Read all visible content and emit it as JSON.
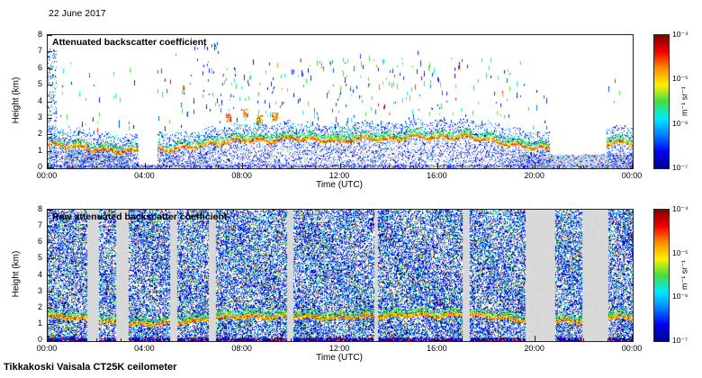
{
  "page": {
    "date_label": "22 June 2017",
    "footer_label": "Tikkakoski Vaisala CT25K ceilometer"
  },
  "chart_data": [
    {
      "type": "heatmap",
      "title": "Attenuated backscatter coefficient",
      "xlabel": "Time (UTC)",
      "ylabel": "Height (km)",
      "x_tick_labels": [
        "00:00",
        "04:00",
        "08:00",
        "12:00",
        "16:00",
        "20:00",
        "00:00"
      ],
      "x_range_hours": [
        0,
        24
      ],
      "y_tick_labels": [
        "0",
        "1",
        "2",
        "3",
        "4",
        "5",
        "6",
        "7",
        "8"
      ],
      "ylim_km": [
        0,
        8
      ],
      "grid": false,
      "colorbar": {
        "unit_label": "m⁻¹ sr⁻¹",
        "scale": "log",
        "tick_labels": [
          "10⁻⁴",
          "10⁻⁵",
          "10⁻⁶",
          "10⁻⁷"
        ],
        "range": [
          1e-07,
          0.0001
        ],
        "gradient_colors": [
          "#7f0000",
          "#ee0000",
          "#ff8c00",
          "#ffee00",
          "#44dd44",
          "#00eaff",
          "#0080ff",
          "#0000ee",
          "#000090"
        ]
      },
      "render": {
        "kind": "sparse",
        "nodata_grey": "#d8d8d8",
        "ground_grey": "#c6c6c6",
        "cloud_base_km": [
          1.4,
          1.3,
          1.1,
          1.0,
          1.0,
          1.1,
          1.3,
          1.5,
          1.7,
          1.6,
          1.8,
          1.7,
          1.6,
          1.8,
          1.7,
          1.9,
          1.8,
          1.9,
          1.7,
          1.4,
          1.2,
          1.2,
          1.3,
          1.5,
          1.5
        ],
        "gaps_hours": [
          [
            3.7,
            4.5
          ],
          [
            20.6,
            22.9
          ]
        ],
        "grey_chunks": [
          [
            0.7,
            3.3,
            1.1
          ],
          [
            6.2,
            6.5,
            0.9
          ],
          [
            19.3,
            24,
            0.8
          ]
        ],
        "high_speck_density": 0.45,
        "blobs": [
          {
            "t": 7.4,
            "km": 3.0
          },
          {
            "t": 8.1,
            "km": 3.3
          },
          {
            "t": 8.7,
            "km": 2.9
          },
          {
            "t": 9.3,
            "km": 3.1
          }
        ]
      }
    },
    {
      "type": "heatmap",
      "title": "Raw attenuated backscatter coefficient",
      "xlabel": "Time (UTC)",
      "ylabel": "Height (km)",
      "x_tick_labels": [
        "00:00",
        "04:00",
        "08:00",
        "12:00",
        "16:00",
        "20:00",
        "00:00"
      ],
      "x_range_hours": [
        0,
        24
      ],
      "y_tick_labels": [
        "0",
        "1",
        "2",
        "3",
        "4",
        "5",
        "6",
        "7",
        "8"
      ],
      "ylim_km": [
        0,
        8
      ],
      "grid": false,
      "colorbar": {
        "unit_label": "m⁻¹ sr⁻¹",
        "scale": "log",
        "tick_labels": [
          "10⁻⁴",
          "10⁻⁵",
          "10⁻⁶",
          "10⁻⁷"
        ],
        "range": [
          1e-07,
          0.0001
        ],
        "gradient_colors": [
          "#7f0000",
          "#ee0000",
          "#ff8c00",
          "#ffee00",
          "#44dd44",
          "#00eaff",
          "#0080ff",
          "#0000ee",
          "#000090"
        ]
      },
      "render": {
        "kind": "dense",
        "nodata_grey": "#d8d8d8",
        "ground_grey": "#c6c6c6",
        "cloud_base_km": [
          1.5,
          1.4,
          1.2,
          1.0,
          1.0,
          1.1,
          1.2,
          1.4,
          1.5,
          1.4,
          1.5,
          1.4,
          1.4,
          1.5,
          1.5,
          1.6,
          1.5,
          1.6,
          1.5,
          1.3,
          1.2,
          1.2,
          1.2,
          1.4,
          1.4
        ],
        "gaps_hours": [
          [
            1.6,
            2.1
          ],
          [
            2.8,
            3.3
          ],
          [
            5.0,
            5.3
          ],
          [
            6.6,
            6.9
          ],
          [
            9.8,
            10.05
          ],
          [
            13.4,
            13.55
          ],
          [
            17.0,
            17.3
          ],
          [
            19.6,
            20.8
          ],
          [
            21.9,
            23.0
          ]
        ]
      }
    }
  ]
}
